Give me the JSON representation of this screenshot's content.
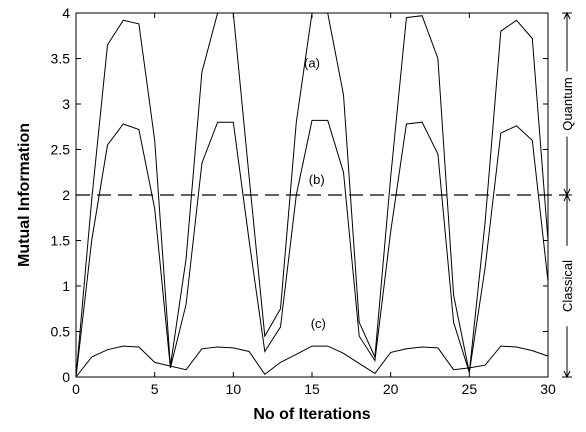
{
  "chart_data": {
    "type": "line",
    "xlabel": "No of Iterations",
    "ylabel": "Mutual Information",
    "xlim": [
      0,
      30
    ],
    "ylim": [
      0,
      4
    ],
    "xticks": [
      "0",
      "5",
      "10",
      "15",
      "20",
      "25",
      "30"
    ],
    "yticks": [
      "0",
      "0.5",
      "1",
      "1.5",
      "2",
      "2.5",
      "3",
      "3.5",
      "4"
    ],
    "x": [
      0,
      1,
      2,
      3,
      4,
      5,
      6,
      7,
      8,
      9,
      10,
      11,
      12,
      13,
      14,
      15,
      16,
      17,
      18,
      19,
      20,
      21,
      22,
      23,
      24,
      25,
      26,
      27,
      28,
      29,
      30
    ],
    "series": [
      {
        "name": "(a)",
        "values": [
          0.0,
          1.95,
          3.65,
          3.92,
          3.88,
          2.6,
          0.12,
          1.3,
          3.35,
          4.0,
          4.0,
          2.2,
          0.45,
          0.75,
          2.8,
          4.0,
          4.0,
          3.1,
          0.6,
          0.22,
          2.2,
          3.95,
          3.97,
          3.5,
          0.9,
          0.05,
          1.7,
          3.8,
          3.92,
          3.72,
          1.5
        ]
      },
      {
        "name": "(b)",
        "values": [
          0.0,
          1.5,
          2.55,
          2.78,
          2.72,
          1.85,
          0.1,
          0.8,
          2.35,
          2.8,
          2.8,
          1.5,
          0.28,
          0.55,
          2.0,
          2.82,
          2.82,
          2.25,
          0.45,
          0.18,
          1.6,
          2.78,
          2.8,
          2.45,
          0.6,
          0.05,
          1.2,
          2.68,
          2.76,
          2.6,
          1.05
        ]
      },
      {
        "name": "(c)",
        "values": [
          0.0,
          0.22,
          0.3,
          0.34,
          0.33,
          0.16,
          0.12,
          0.08,
          0.31,
          0.33,
          0.32,
          0.28,
          0.03,
          0.16,
          0.25,
          0.34,
          0.34,
          0.26,
          0.15,
          0.04,
          0.27,
          0.31,
          0.33,
          0.32,
          0.08,
          0.1,
          0.13,
          0.34,
          0.33,
          0.29,
          0.23
        ]
      }
    ],
    "threshold": 2,
    "annotations": [
      {
        "text": "(a)",
        "x": 15.0,
        "y": 3.4
      },
      {
        "text": "(b)",
        "x": 15.3,
        "y": 2.12
      },
      {
        "text": "(c)",
        "x": 15.4,
        "y": 0.54
      }
    ],
    "brackets": [
      {
        "label": "Quantum",
        "from": 2,
        "to": 4
      },
      {
        "label": "Classical",
        "from": 0,
        "to": 2
      }
    ],
    "grid": false,
    "legend": "none"
  }
}
